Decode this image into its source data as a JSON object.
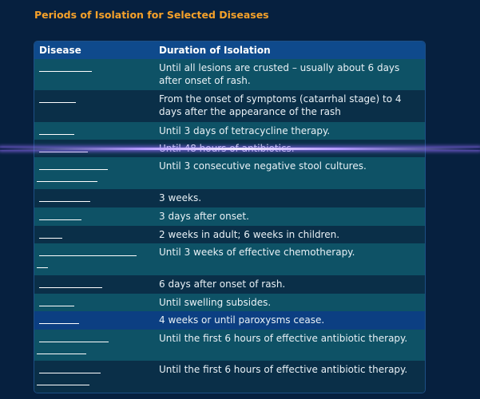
{
  "title": "Periods of Isolation for Selected Diseases",
  "columns": {
    "disease": "Disease",
    "duration": "Duration of Isolation"
  },
  "rows": [
    {
      "duration": "Until all lesions are crusted – usually about 6 days after onset of rash."
    },
    {
      "duration": "From the onset of symptoms (catarrhal stage) to 4 days after the appearance of the rash"
    },
    {
      "duration": "Until 3 days of tetracycline therapy."
    },
    {
      "duration": "Until 48 hours of antibiotics."
    },
    {
      "duration": "Until 3 consecutive negative stool cultures."
    },
    {
      "duration": "3 weeks."
    },
    {
      "duration": "3 days after onset."
    },
    {
      "duration": "2 weeks in adult; 6 weeks in children."
    },
    {
      "duration": "Until 3 weeks of effective chemotherapy."
    },
    {
      "duration": "6 days after onset of rash."
    },
    {
      "duration": "Until swelling subsides."
    },
    {
      "duration": "4 weeks or until paroxysms cease."
    },
    {
      "duration": "Until the first 6 hours of effective antibiotic therapy."
    },
    {
      "duration": "Until the first 6 hours of effective antibiotic therapy."
    }
  ]
}
